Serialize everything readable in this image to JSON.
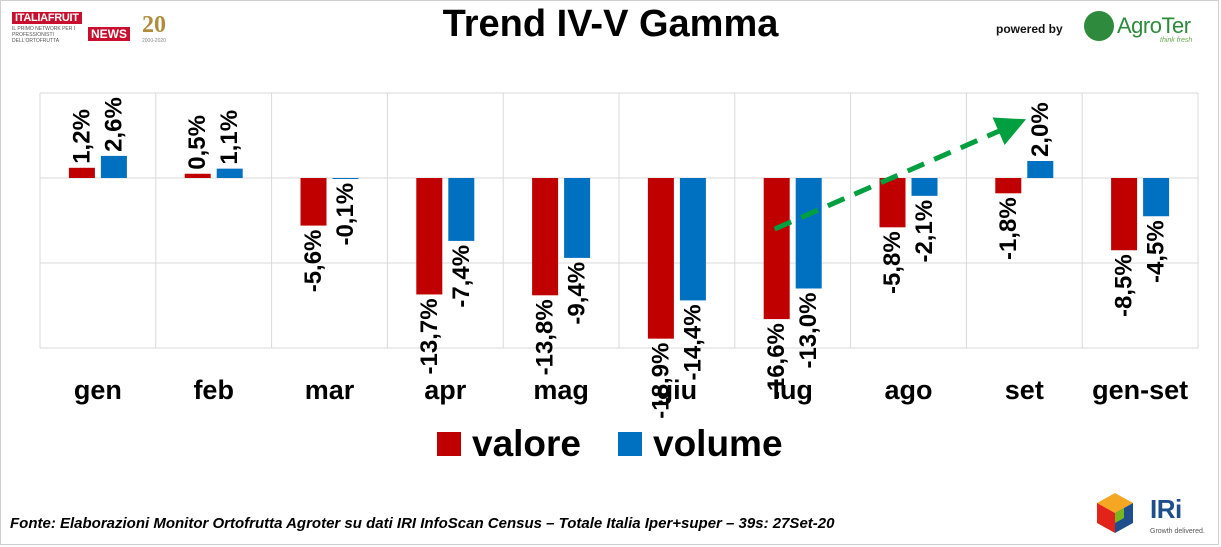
{
  "header": {
    "logo_top": "ITALIAFRUIT",
    "logo_sub": "IL PRIMO NETWORK PER I PROFESSIONISTI DELL'ORTOFRUTTA",
    "logo_news": "NEWS",
    "logo_twenty": "20",
    "logo_years": "2000-2020",
    "powered_by": "powered by",
    "agro_name": "AgroTer",
    "agro_tagline": "think fresh"
  },
  "chart_data": {
    "type": "bar",
    "title": "Trend IV-V Gamma",
    "categories": [
      "gen",
      "feb",
      "mar",
      "apr",
      "mag",
      "giu",
      "lug",
      "ago",
      "set",
      "gen-set"
    ],
    "series": [
      {
        "name": "valore",
        "color": "#c00000",
        "values": [
          1.2,
          0.5,
          -5.6,
          -13.7,
          -13.8,
          -18.9,
          -16.6,
          -5.8,
          -1.8,
          -8.5
        ],
        "labels": [
          "1,2%",
          "0,5%",
          "-5,6%",
          "-13,7%",
          "-13,8%",
          "-18,9%",
          "-16,6%",
          "-5,8%",
          "-1,8%",
          "-8,5%"
        ]
      },
      {
        "name": "volume",
        "color": "#0070c0",
        "values": [
          2.6,
          1.1,
          -0.1,
          -7.4,
          -9.4,
          -14.4,
          -13.0,
          -2.1,
          2.0,
          -4.5
        ],
        "labels": [
          "2,6%",
          "1,1%",
          "-0,1%",
          "-7,4%",
          "-9,4%",
          "-14,4%",
          "-13,0%",
          "-2,1%",
          "2,0%",
          "-4,5%"
        ]
      }
    ],
    "ylim": [
      -20,
      10
    ],
    "grid": true,
    "legend": "bottom-center",
    "annotation": "green dashed arrow rising from lug to set",
    "annotation_color": "#00a040"
  },
  "footer": {
    "source": "Fonte: Elaborazioni Monitor Ortofrutta Agroter su dati IRI InfoScan Census – Totale Italia Iper+super – 39s: 27Set-20",
    "iri_name": "IRi",
    "iri_tagline": "Growth delivered."
  }
}
